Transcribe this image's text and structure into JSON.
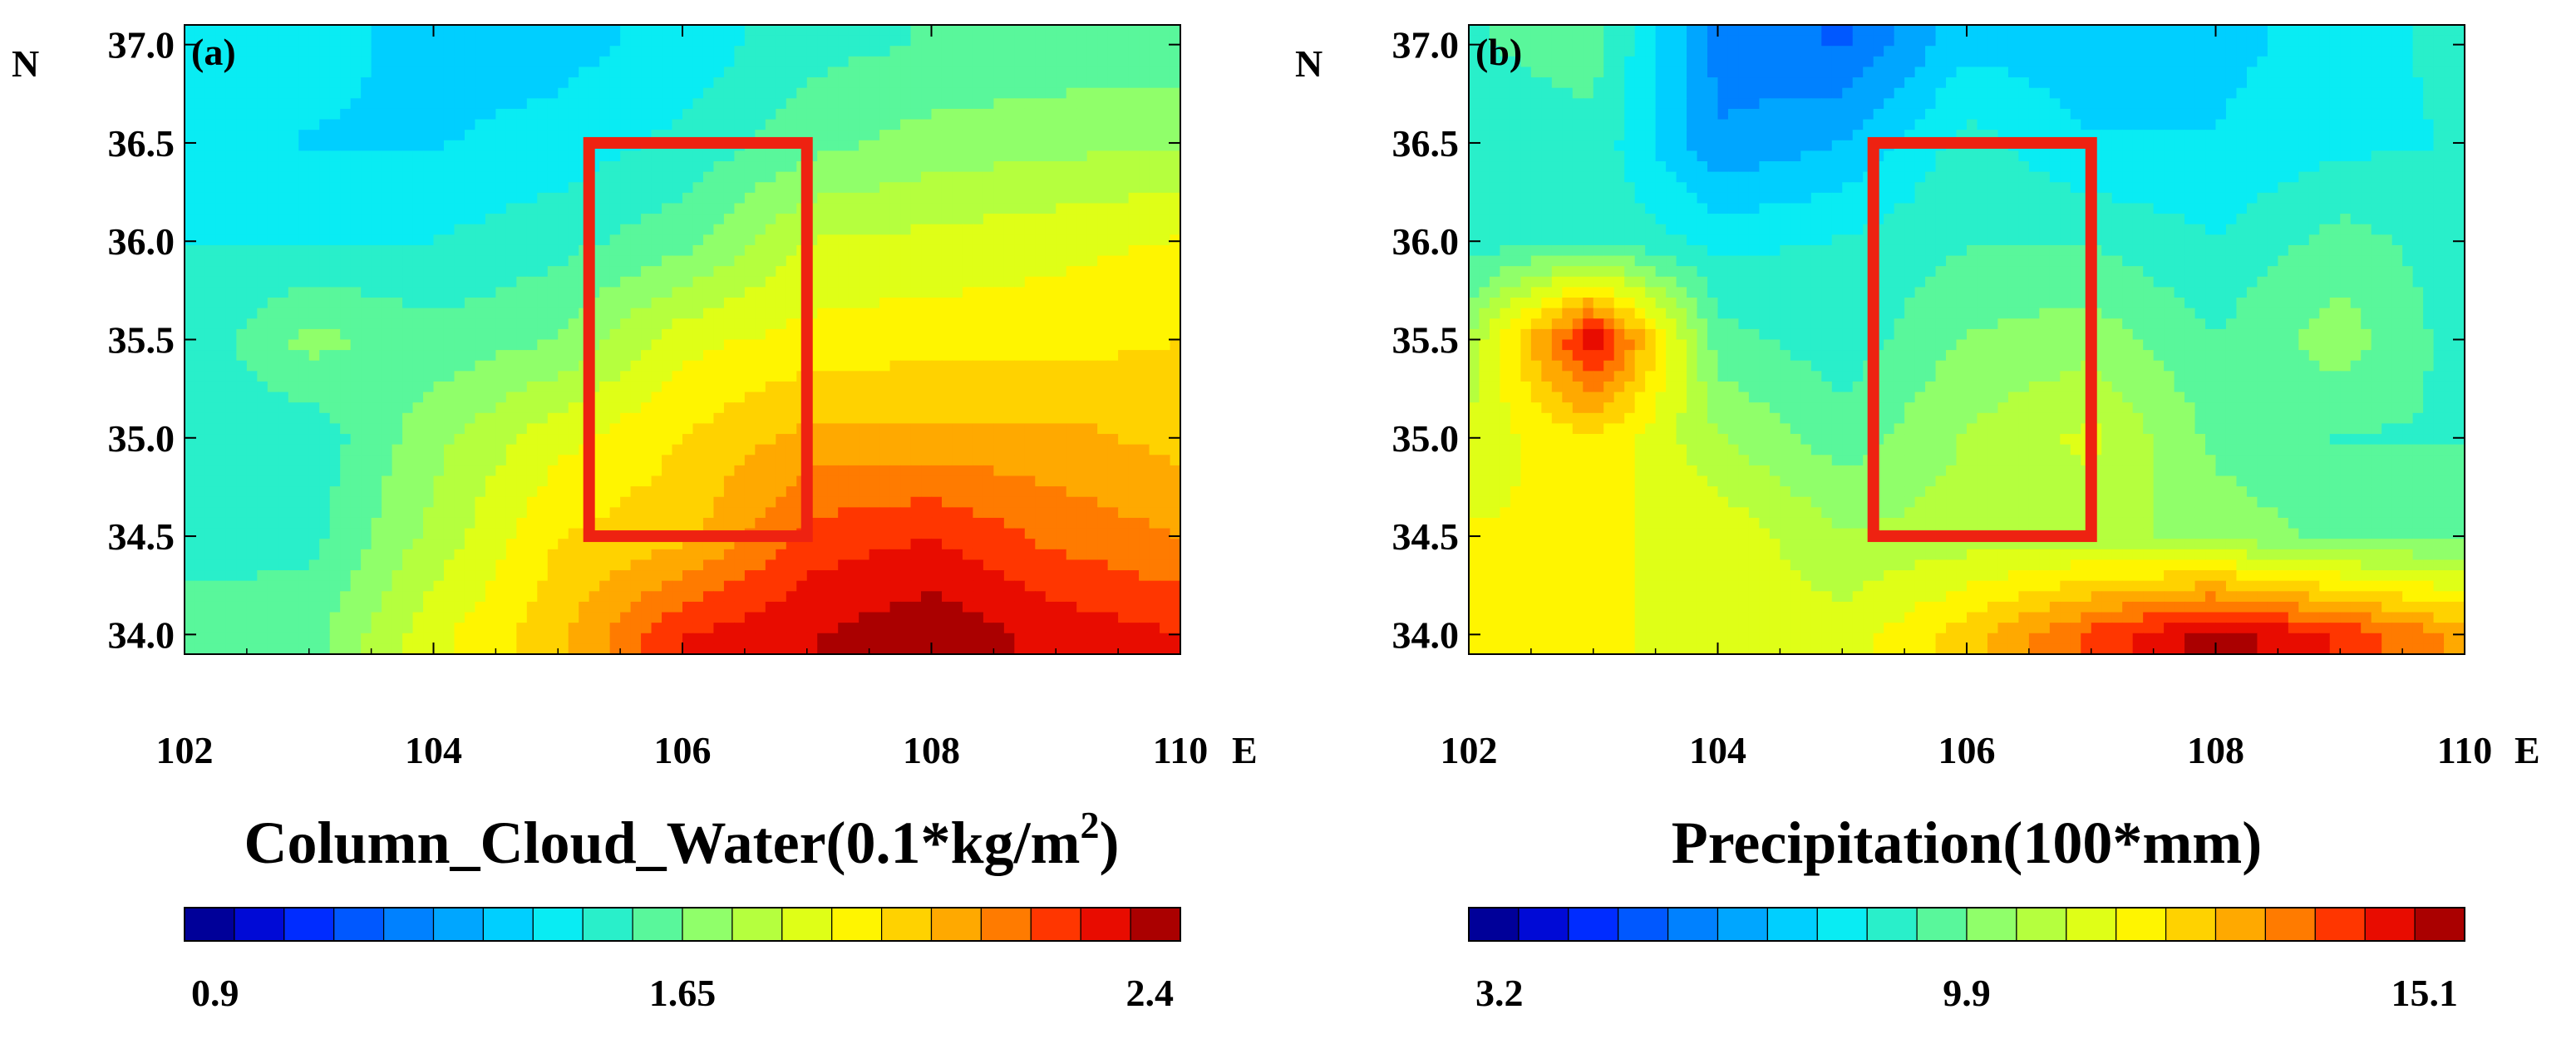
{
  "chart_data": [
    {
      "type": "heatmap",
      "panel_label": "(a)",
      "title": "Column_Cloud_Water(0.1*kg/m",
      "title_sup": "2",
      "title_tail": ")",
      "xlabel": "E",
      "ylabel": "N",
      "xlim": [
        102,
        110
      ],
      "ylim": [
        33.9,
        37.1
      ],
      "x_ticks": [
        102,
        104,
        106,
        108,
        110
      ],
      "y_ticks": [
        34.0,
        34.5,
        35.0,
        35.5,
        36.0,
        36.5,
        37.0
      ],
      "x_tick_labels": [
        "102",
        "104",
        "106",
        "108",
        "110"
      ],
      "y_tick_labels": [
        "34.0",
        "34.5",
        "35.0",
        "35.5",
        "36.0",
        "36.5",
        "37.0"
      ],
      "colorbar": {
        "min": 0.9,
        "max": 2.4,
        "levels": 20,
        "tick_labels": [
          "0.9",
          "1.65",
          "2.4"
        ]
      },
      "region_box": {
        "lon": [
          105.25,
          107.0
        ],
        "lat": [
          34.5,
          36.5
        ],
        "color": "#ee2211"
      },
      "x": [
        102,
        103,
        104,
        105,
        106,
        107,
        108,
        109,
        110
      ],
      "y": [
        34.0,
        34.5,
        35.0,
        35.5,
        36.0,
        36.5,
        37.0
      ],
      "z": [
        [
          1.6,
          1.62,
          1.85,
          2.0,
          2.25,
          2.32,
          2.38,
          2.3,
          2.25
        ],
        [
          1.55,
          1.55,
          1.75,
          1.95,
          2.0,
          2.2,
          2.25,
          2.15,
          2.1
        ],
        [
          1.55,
          1.52,
          1.7,
          1.85,
          1.95,
          2.05,
          2.05,
          2.05,
          2.0
        ],
        [
          1.5,
          1.68,
          1.6,
          1.65,
          1.85,
          1.9,
          1.92,
          1.92,
          1.95
        ],
        [
          1.5,
          1.5,
          1.5,
          1.55,
          1.62,
          1.8,
          1.82,
          1.85,
          1.88
        ],
        [
          1.45,
          1.42,
          1.42,
          1.45,
          1.52,
          1.62,
          1.68,
          1.7,
          1.72
        ],
        [
          1.45,
          1.45,
          1.4,
          1.4,
          1.45,
          1.55,
          1.58,
          1.6,
          1.6
        ]
      ]
    },
    {
      "type": "heatmap",
      "panel_label": "(b)",
      "title": "Precipitation(100*mm)",
      "title_sup": "",
      "title_tail": "",
      "xlabel": "E",
      "ylabel": "N",
      "xlim": [
        102,
        110
      ],
      "ylim": [
        33.9,
        37.1
      ],
      "x_ticks": [
        102,
        104,
        106,
        108,
        110
      ],
      "y_ticks": [
        34.0,
        34.5,
        35.0,
        35.5,
        36.0,
        36.5,
        37.0
      ],
      "x_tick_labels": [
        "102",
        "104",
        "106",
        "108",
        "110"
      ],
      "y_tick_labels": [
        "34.0",
        "34.5",
        "35.0",
        "35.5",
        "36.0",
        "36.5",
        "37.0"
      ],
      "colorbar": {
        "min": 3.2,
        "max": 15.1,
        "levels": 20,
        "tick_labels": [
          "3.2",
          "9.9",
          "15.1"
        ]
      },
      "region_box": {
        "lon": [
          105.25,
          107.0
        ],
        "lat": [
          34.5,
          36.5
        ],
        "color": "#ee2211"
      },
      "x": [
        102,
        103,
        104,
        105,
        106,
        107,
        108,
        109,
        110
      ],
      "y": [
        34.0,
        34.5,
        35.0,
        35.5,
        36.0,
        36.5,
        37.0
      ],
      "z": [
        [
          11.0,
          11.0,
          10.8,
          10.6,
          11.8,
          13.5,
          14.8,
          13.8,
          12.5
        ],
        [
          11.0,
          11.0,
          10.8,
          9.8,
          10.0,
          10.0,
          9.5,
          9.0,
          9.0
        ],
        [
          10.5,
          11.5,
          9.8,
          8.8,
          9.8,
          10.5,
          9.0,
          8.5,
          8.5
        ],
        [
          9.8,
          14.5,
          8.8,
          8.2,
          9.2,
          9.5,
          8.6,
          9.5,
          8.2
        ],
        [
          8.2,
          8.5,
          7.8,
          8.0,
          8.5,
          8.5,
          8.0,
          8.8,
          8.2
        ],
        [
          8.2,
          8.4,
          6.2,
          6.8,
          8.2,
          7.4,
          7.4,
          7.8,
          8.0
        ],
        [
          8.5,
          8.8,
          6.0,
          5.5,
          7.2,
          7.0,
          7.2,
          7.6,
          8.2
        ]
      ]
    }
  ]
}
